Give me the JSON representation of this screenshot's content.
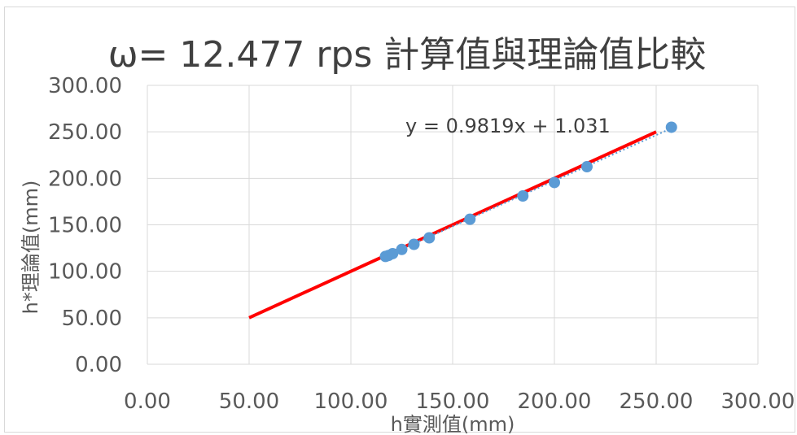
{
  "chart_data": {
    "type": "scatter",
    "title": "ω= 12.477 rps 計算值與理論值比較",
    "xlabel": "h實測值(mm)",
    "ylabel": "h*理論值(mm)",
    "xlim": [
      0,
      300
    ],
    "ylim": [
      0,
      300
    ],
    "x_ticks": [
      "0.00",
      "50.00",
      "100.00",
      "150.00",
      "200.00",
      "250.00",
      "300.00"
    ],
    "y_ticks": [
      "0.00",
      "50.00",
      "100.00",
      "150.00",
      "200.00",
      "250.00",
      "300.00"
    ],
    "grid": true,
    "legend": "none",
    "series": [
      {
        "kind": "scatter",
        "color": "#5b9bd5",
        "points": [
          {
            "x": 117,
            "y": 116
          },
          {
            "x": 118.5,
            "y": 117
          },
          {
            "x": 120.5,
            "y": 119
          },
          {
            "x": 125,
            "y": 123.5
          },
          {
            "x": 131,
            "y": 129
          },
          {
            "x": 138.5,
            "y": 136
          },
          {
            "x": 158.5,
            "y": 156
          },
          {
            "x": 184.5,
            "y": 181
          },
          {
            "x": 200,
            "y": 195.5
          },
          {
            "x": 216,
            "y": 212.5
          },
          {
            "x": 257.5,
            "y": 255
          }
        ]
      },
      {
        "kind": "line",
        "color": "#ff0000",
        "points": [
          {
            "x": 50,
            "y": 50
          },
          {
            "x": 250,
            "y": 250
          }
        ]
      },
      {
        "kind": "trendline",
        "color": "#5b9bd5",
        "slope": 0.9819,
        "intercept": 1.031,
        "x_range": [
          117,
          257.5
        ]
      }
    ],
    "annotation": "y = 0.9819x + 1.031"
  }
}
